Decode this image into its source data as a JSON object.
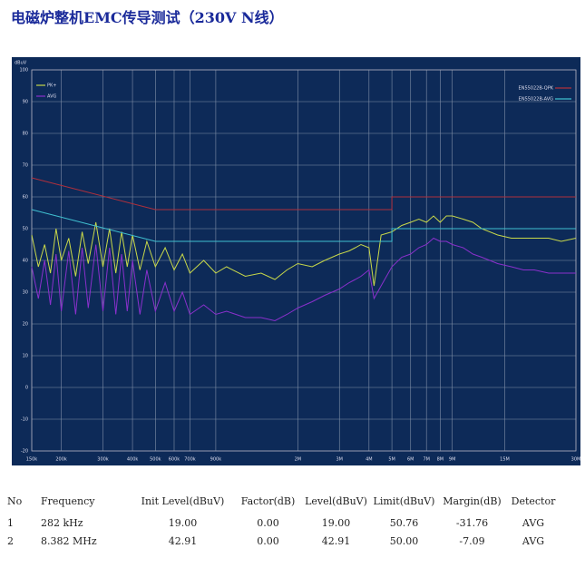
{
  "chart_data": {
    "type": "line",
    "title": "电磁炉整机EMC传导测试（230V N线）",
    "y_label": "dBuV",
    "log_x": true,
    "grid": true,
    "background": "#0d2a58",
    "xlim": [
      150000,
      30000000
    ],
    "ylim": [
      -20,
      100
    ],
    "xticks": [
      {
        "value": 150000,
        "label": "150k"
      },
      {
        "value": 200000,
        "label": "200k"
      },
      {
        "value": 300000,
        "label": "300k"
      },
      {
        "value": 400000,
        "label": "400k"
      },
      {
        "value": 500000,
        "label": "500k"
      },
      {
        "value": 600000,
        "label": "600k"
      },
      {
        "value": 700000,
        "label": "700k"
      },
      {
        "value": 900000,
        "label": "900k"
      },
      {
        "value": 2000000,
        "label": "2M"
      },
      {
        "value": 3000000,
        "label": "3M"
      },
      {
        "value": 4000000,
        "label": "4M"
      },
      {
        "value": 5000000,
        "label": "5M"
      },
      {
        "value": 6000000,
        "label": "6M"
      },
      {
        "value": 7000000,
        "label": "7M"
      },
      {
        "value": 8000000,
        "label": "8M"
      },
      {
        "value": 9000000,
        "label": "9M"
      },
      {
        "value": 15000000,
        "label": "15M"
      },
      {
        "value": 30000000,
        "label": "30M"
      }
    ],
    "yticks": [
      100,
      90,
      80,
      70,
      60,
      50,
      40,
      30,
      20,
      10,
      0,
      -10,
      -20
    ],
    "series": [
      {
        "name": "PK+",
        "color": "#c8d84a",
        "x": [
          150000,
          160000,
          170000,
          180000,
          190000,
          200000,
          215000,
          230000,
          245000,
          260000,
          280000,
          300000,
          320000,
          340000,
          360000,
          380000,
          400000,
          430000,
          460000,
          500000,
          550000,
          600000,
          650000,
          700000,
          800000,
          900000,
          1000000,
          1200000,
          1400000,
          1600000,
          1800000,
          2000000,
          2300000,
          2600000,
          3000000,
          3300000,
          3500000,
          3700000,
          4000000,
          4200000,
          4500000,
          5000000,
          5500000,
          6000000,
          6500000,
          7000000,
          7500000,
          8000000,
          8500000,
          9000000,
          10000000,
          11000000,
          12000000,
          14000000,
          16000000,
          18000000,
          20000000,
          23000000,
          26000000,
          30000000
        ],
        "values": [
          48,
          38,
          45,
          36,
          50,
          40,
          47,
          35,
          49,
          39,
          52,
          38,
          50,
          36,
          49,
          38,
          48,
          37,
          46,
          38,
          44,
          37,
          42,
          36,
          40,
          36,
          38,
          35,
          36,
          34,
          37,
          39,
          38,
          40,
          42,
          43,
          44,
          45,
          44,
          32,
          48,
          49,
          51,
          52,
          53,
          52,
          54,
          52,
          54,
          54,
          53,
          52,
          50,
          48,
          47,
          47,
          47,
          47,
          46,
          47
        ]
      },
      {
        "name": "AVG",
        "color": "#8a30cc",
        "x": [
          150000,
          160000,
          170000,
          180000,
          190000,
          200000,
          215000,
          230000,
          245000,
          260000,
          280000,
          300000,
          320000,
          340000,
          360000,
          380000,
          400000,
          430000,
          460000,
          500000,
          550000,
          600000,
          650000,
          700000,
          800000,
          900000,
          1000000,
          1200000,
          1400000,
          1600000,
          1800000,
          2000000,
          2300000,
          2600000,
          3000000,
          3300000,
          3500000,
          3700000,
          4000000,
          4200000,
          4500000,
          5000000,
          5500000,
          6000000,
          6500000,
          7000000,
          7500000,
          8000000,
          8500000,
          9000000,
          10000000,
          11000000,
          12000000,
          14000000,
          16000000,
          18000000,
          20000000,
          23000000,
          26000000,
          30000000
        ],
        "values": [
          38,
          28,
          40,
          26,
          42,
          24,
          43,
          23,
          44,
          25,
          45,
          24,
          44,
          23,
          42,
          24,
          40,
          23,
          37,
          24,
          33,
          24,
          30,
          23,
          26,
          23,
          24,
          22,
          22,
          21,
          23,
          25,
          27,
          29,
          31,
          33,
          34,
          35,
          37,
          28,
          32,
          38,
          41,
          42,
          44,
          45,
          47,
          46,
          46,
          45,
          44,
          42,
          41,
          39,
          38,
          37,
          37,
          36,
          36,
          36
        ]
      },
      {
        "name": "EN55022B-QPK",
        "color": "#b0303c",
        "x": [
          150000,
          500000,
          5000000,
          5000000,
          30000000
        ],
        "values": [
          66,
          56,
          56,
          60,
          60
        ]
      },
      {
        "name": "EN55022B-AVG",
        "color": "#40c0d0",
        "x": [
          150000,
          500000,
          5000000,
          5000000,
          30000000
        ],
        "values": [
          56,
          46,
          46,
          50,
          50
        ]
      }
    ]
  },
  "table": {
    "header": [
      "No",
      "Frequency",
      "Init Level(dBuV)",
      "Factor(dB)",
      "Level(dBuV)",
      "Limit(dBuV)",
      "Margin(dB)",
      "Detector"
    ],
    "rows": [
      [
        "1",
        "282 kHz",
        "19.00",
        "0.00",
        "19.00",
        "50.76",
        "-31.76",
        "AVG"
      ],
      [
        "2",
        "8.382 MHz",
        "42.91",
        "0.00",
        "42.91",
        "50.00",
        "-7.09",
        "AVG"
      ]
    ]
  }
}
